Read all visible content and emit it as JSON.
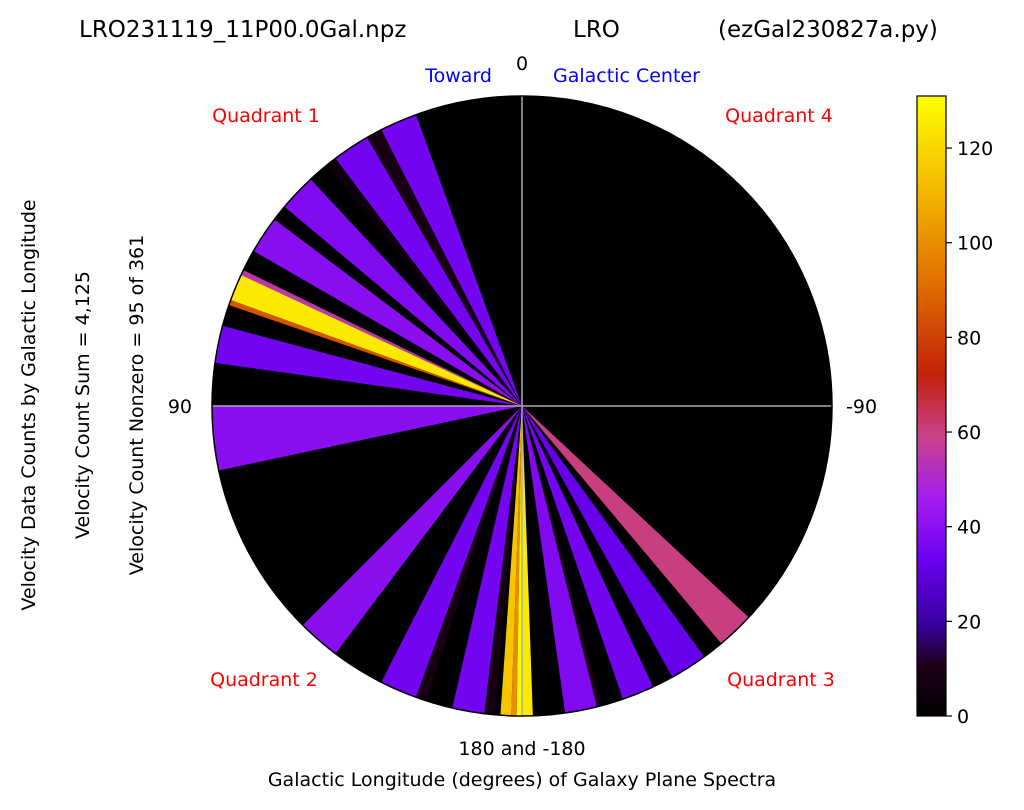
{
  "title": {
    "left": "LRO231119_11P00.0Gal.npz",
    "center": "LRO",
    "right": "(ezGal230827a.py)"
  },
  "ylabels": {
    "outer": "Velocity Data Counts by Galactic Longitude",
    "middle": "Velocity Count Sum = 4,125",
    "inner": "Velocity Count Nonzero = 95 of 361"
  },
  "xlabel": "Galactic Longitude (degrees) of Galaxy Plane Spectra",
  "annotations": {
    "toward": "Toward",
    "galactic_center": "Galactic Center",
    "quadrant1": "Quadrant 1",
    "quadrant2": "Quadrant 2",
    "quadrant3": "Quadrant 3",
    "quadrant4": "Quadrant 4"
  },
  "angle_labels": {
    "top": "0",
    "left": "90",
    "right": "-90",
    "bottom": "180 and -180"
  },
  "colors": {
    "background": "#000000",
    "axes": "#aaaaaa",
    "quadrant_labels": "#ff0000",
    "center_labels": "#0000ff"
  },
  "chart_data": {
    "type": "heatmap",
    "projection": "polar",
    "theta_zero": "top",
    "theta_direction": "counterclockwise",
    "theta_unit": "degrees galactic longitude",
    "colormap": "gnuplot",
    "colorbar": {
      "min": 0,
      "max": 131,
      "ticks": [
        0,
        20,
        40,
        60,
        80,
        100,
        120
      ]
    },
    "wedges": [
      {
        "from": 20,
        "to": 27,
        "value": 35
      },
      {
        "from": 27,
        "to": 30,
        "value": 8
      },
      {
        "from": 30,
        "to": 37,
        "value": 35
      },
      {
        "from": 37,
        "to": 39,
        "value": 5
      },
      {
        "from": 43,
        "to": 50,
        "value": 38
      },
      {
        "from": 53,
        "to": 60,
        "value": 40
      },
      {
        "from": 64,
        "to": 65,
        "value": 55
      },
      {
        "from": 65,
        "to": 70,
        "value": 125
      },
      {
        "from": 70,
        "to": 71,
        "value": 85
      },
      {
        "from": 75,
        "to": 82,
        "value": 35
      },
      {
        "from": 90,
        "to": 102,
        "value": 40
      },
      {
        "from": 135,
        "to": 143,
        "value": 40
      },
      {
        "from": 153,
        "to": 160,
        "value": 35
      },
      {
        "from": 160,
        "to": 162,
        "value": 8
      },
      {
        "from": 167,
        "to": 173,
        "value": 35
      },
      {
        "from": 173,
        "to": 175,
        "value": 8
      },
      {
        "from": 176,
        "to": 178,
        "value": 115
      },
      {
        "from": 178,
        "to": 179,
        "value": 100
      },
      {
        "from": 179,
        "to": 180,
        "value": 130
      },
      {
        "from": 180,
        "to": 182,
        "value": 125
      },
      {
        "from": 188,
        "to": 194,
        "value": 38
      },
      {
        "from": 194,
        "to": 195,
        "value": 8
      },
      {
        "from": 199,
        "to": 205,
        "value": 35
      },
      {
        "from": 209,
        "to": 216,
        "value": 32
      },
      {
        "from": 220,
        "to": 227,
        "value": 60
      }
    ]
  }
}
